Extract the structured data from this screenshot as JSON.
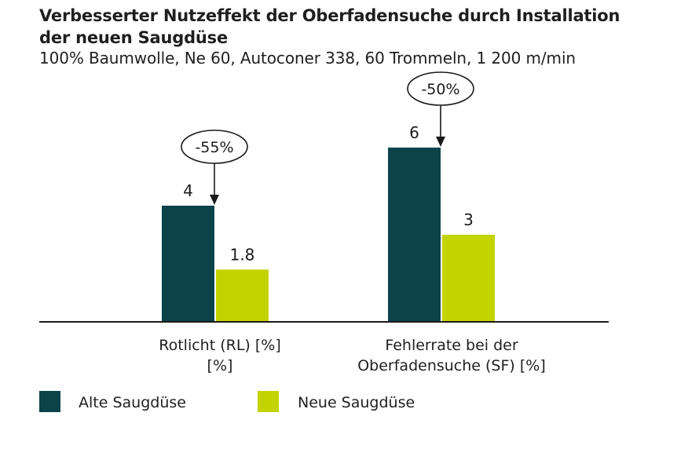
{
  "chart_data": {
    "type": "bar",
    "title_line1": "Verbesserter Nutzeffekt der Oberfadensuche durch Installation",
    "title_line2": "der neuen Saugdüse",
    "subtitle": "100% Baumwolle, Ne 60, Autoconer 338, 60 Trommeln, 1 200 m/min",
    "categories": [
      {
        "line1": "Rotlicht (RL) [%]",
        "line2": "[%]"
      },
      {
        "line1": "Fehlerrate bei der",
        "line2": "Oberfadensuche (SF) [%]"
      }
    ],
    "series": [
      {
        "name": "Alte Saugdüse",
        "color": "#0c434a",
        "values": [
          4,
          6
        ],
        "labels": [
          "4",
          "6"
        ]
      },
      {
        "name": "Neue Saugdüse",
        "color": "#c3d300",
        "values": [
          1.8,
          3
        ],
        "labels": [
          "1.8",
          "3"
        ]
      }
    ],
    "annotations": [
      "-55%",
      "-50%"
    ],
    "ylim": [
      0,
      6
    ],
    "legend_position": "bottom-left"
  }
}
